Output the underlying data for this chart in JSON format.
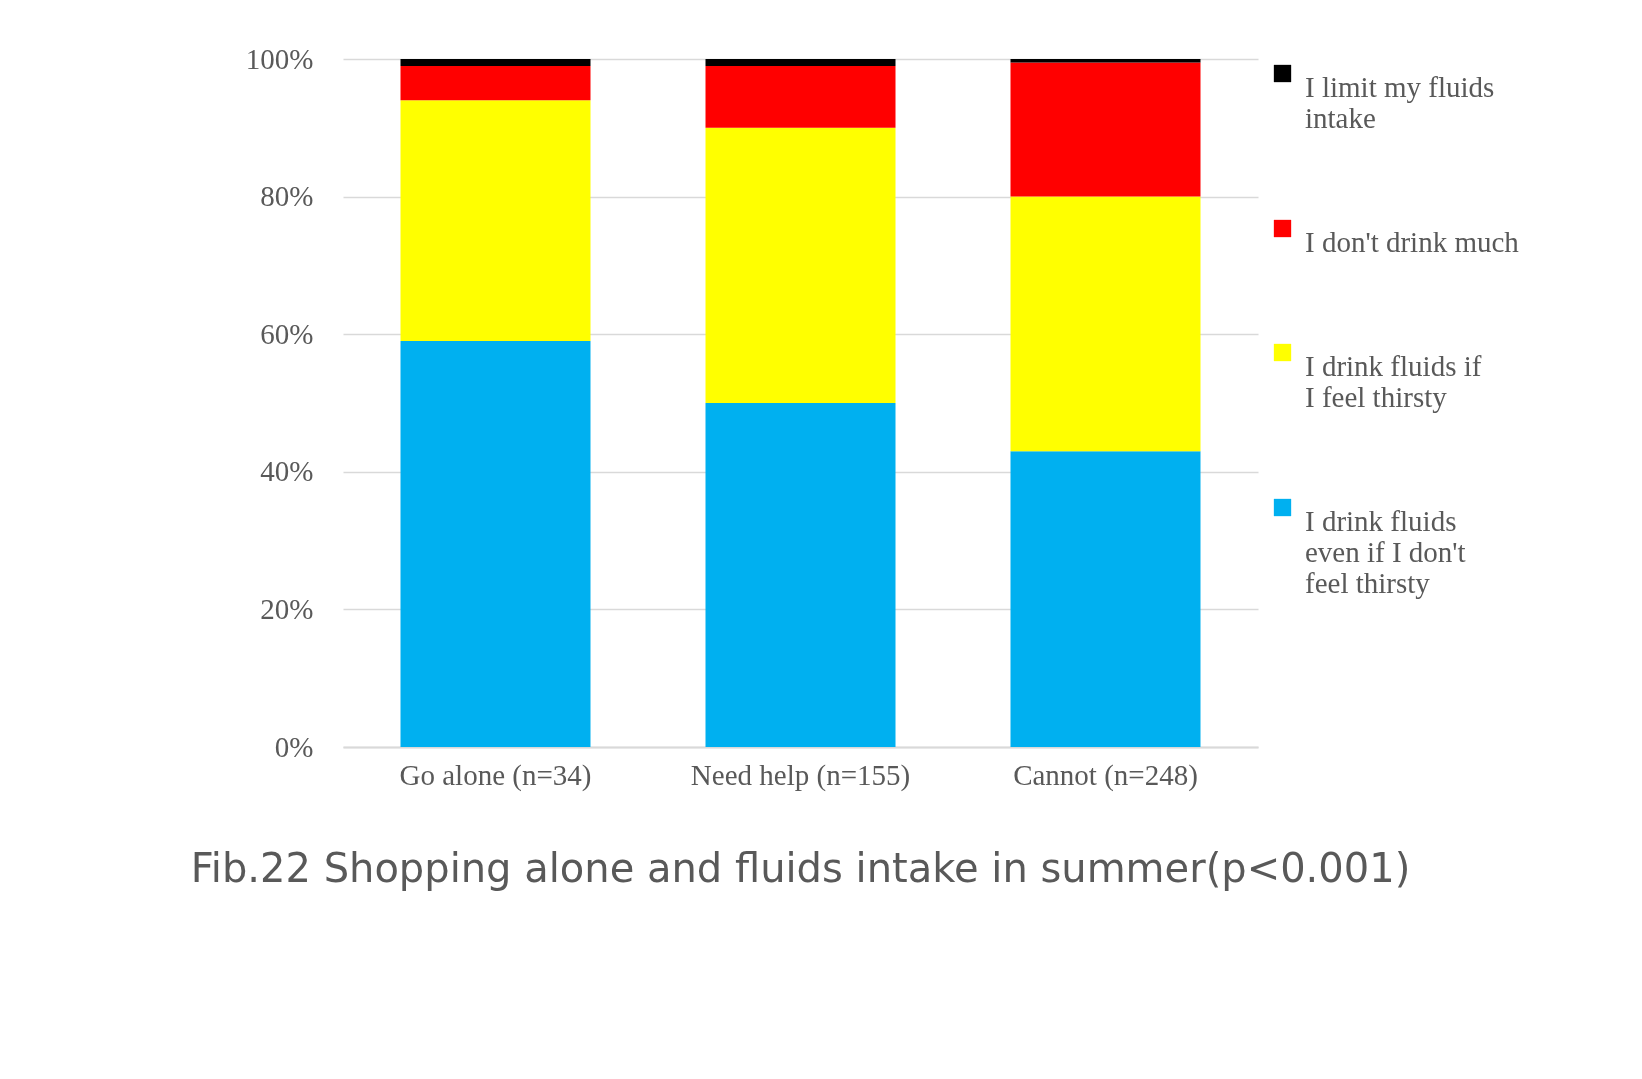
{
  "chart_data": {
    "type": "bar",
    "stacked": true,
    "title": "Fib.22 Shopping alone and fluids intake in summer(p<0.001)",
    "categories": [
      "Go alone (n=34)",
      "Need help (n=155)",
      "Cannot (n=248)"
    ],
    "series": [
      {
        "name": "I drink fluids even if I don't feel thirsty",
        "color": "#00b0f0",
        "values": [
          59,
          50,
          43
        ]
      },
      {
        "name": "I drink fluids if I feel thirsty",
        "color": "#ffff00",
        "values": [
          35,
          40,
          37
        ]
      },
      {
        "name": "I don't drink much",
        "color": "#ff0000",
        "values": [
          5,
          9,
          19.5
        ]
      },
      {
        "name": "I limit my fluids intake",
        "color": "#000000",
        "values": [
          1,
          1,
          0.5
        ]
      }
    ],
    "ylim": [
      0,
      100
    ],
    "yticks": [
      {
        "value": 0,
        "label": "0%"
      },
      {
        "value": 20,
        "label": "20%"
      },
      {
        "value": 40,
        "label": "40%"
      },
      {
        "value": 60,
        "label": "60%"
      },
      {
        "value": 80,
        "label": "80%"
      },
      {
        "value": 100,
        "label": "100%"
      }
    ],
    "grid": "y",
    "legend": "right"
  }
}
